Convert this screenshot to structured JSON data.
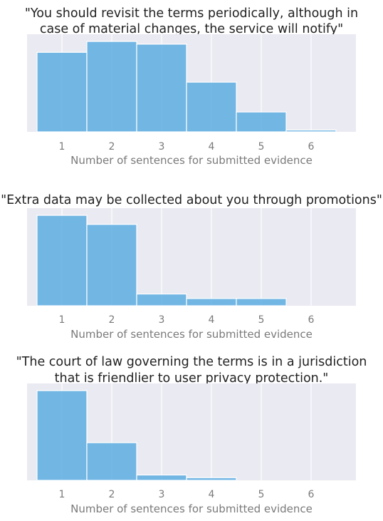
{
  "chart_data": [
    {
      "type": "bar",
      "title_lines": [
        "\"You should revisit the terms periodically, although in",
        "case of material changes, the service will notify\""
      ],
      "xlabel": "Number of sentences for submitted evidence",
      "categories": [
        "1",
        "2",
        "3",
        "4",
        "5",
        "6"
      ],
      "values": [
        0.88,
        1.0,
        0.97,
        0.55,
        0.22,
        0.02
      ],
      "ylim": [
        0,
        1.08
      ],
      "grid": true,
      "yaxis_visible": false,
      "bar_color": "#5dade2"
    },
    {
      "type": "bar",
      "title_lines": [
        "\"Extra data may be collected about you through promotions\""
      ],
      "xlabel": "Number of sentences for submitted evidence",
      "categories": [
        "1",
        "2",
        "3",
        "4",
        "5",
        "6"
      ],
      "values": [
        1.0,
        0.9,
        0.13,
        0.08,
        0.08,
        0.0
      ],
      "ylim": [
        0,
        1.08
      ],
      "grid": true,
      "yaxis_visible": false,
      "bar_color": "#5dade2"
    },
    {
      "type": "bar",
      "title_lines": [
        "\"The court of law governing the terms is in a jurisdiction",
        "that is friendlier to user privacy protection.\""
      ],
      "xlabel": "Number of sentences for submitted evidence",
      "categories": [
        "1",
        "2",
        "3",
        "4",
        "5",
        "6"
      ],
      "values": [
        1.0,
        0.42,
        0.06,
        0.03,
        0.0,
        0.0
      ],
      "ylim": [
        0,
        1.08
      ],
      "grid": true,
      "yaxis_visible": false,
      "bar_color": "#5dade2"
    }
  ],
  "colors": {
    "background": "#eaeaf2",
    "grid": "#ffffff",
    "bar": "#5dade2",
    "text": "#222222",
    "tick": "#7a7a7a"
  }
}
